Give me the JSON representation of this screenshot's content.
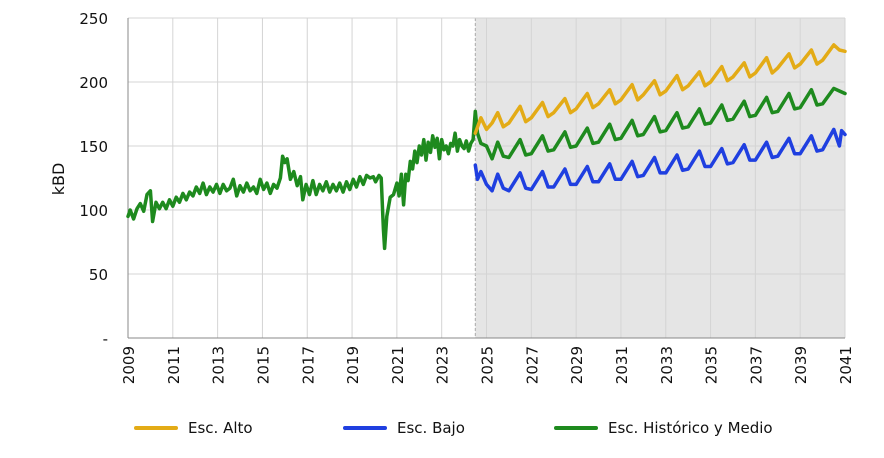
{
  "chart_data": {
    "type": "line",
    "ylabel": "kBD",
    "xlabel": "",
    "title": "",
    "ylim": [
      0,
      250
    ],
    "xlim": [
      2009,
      2041
    ],
    "y_ticks": [
      {
        "value": 0,
        "label": "-"
      },
      {
        "value": 50,
        "label": "50"
      },
      {
        "value": 100,
        "label": "100"
      },
      {
        "value": 150,
        "label": "150"
      },
      {
        "value": 200,
        "label": "200"
      },
      {
        "value": 250,
        "label": "250"
      }
    ],
    "x_ticks": [
      "2009",
      "2011",
      "2013",
      "2015",
      "2017",
      "2019",
      "2021",
      "2023",
      "2025",
      "2027",
      "2029",
      "2031",
      "2033",
      "2035",
      "2037",
      "2039",
      "2041"
    ],
    "grid": "vertical-and-horizontal",
    "legend_position": "bottom",
    "forecast_region": {
      "start": 2024.5,
      "end": 2041,
      "color": "#e5e5e5"
    },
    "series": [
      {
        "name": "Esc. Alto",
        "color": "#e3ab16",
        "points": [
          [
            2024.5,
            160
          ],
          [
            2024.75,
            172
          ],
          [
            2025.0,
            163
          ],
          [
            2025.25,
            168
          ],
          [
            2025.5,
            176
          ],
          [
            2025.75,
            165
          ],
          [
            2026.0,
            168
          ],
          [
            2026.5,
            181
          ],
          [
            2026.75,
            169
          ],
          [
            2027.0,
            172
          ],
          [
            2027.5,
            184
          ],
          [
            2027.75,
            173
          ],
          [
            2028.0,
            176
          ],
          [
            2028.5,
            187
          ],
          [
            2028.75,
            176
          ],
          [
            2029.0,
            179
          ],
          [
            2029.5,
            191
          ],
          [
            2029.75,
            180
          ],
          [
            2030.0,
            183
          ],
          [
            2030.5,
            194
          ],
          [
            2030.75,
            183
          ],
          [
            2031.0,
            186
          ],
          [
            2031.5,
            198
          ],
          [
            2031.75,
            186
          ],
          [
            2032.0,
            190
          ],
          [
            2032.5,
            201
          ],
          [
            2032.75,
            190
          ],
          [
            2033.0,
            193
          ],
          [
            2033.5,
            205
          ],
          [
            2033.75,
            194
          ],
          [
            2034.0,
            197
          ],
          [
            2034.5,
            208
          ],
          [
            2034.75,
            197
          ],
          [
            2035.0,
            200
          ],
          [
            2035.5,
            212
          ],
          [
            2035.75,
            201
          ],
          [
            2036.0,
            204
          ],
          [
            2036.5,
            215
          ],
          [
            2036.75,
            204
          ],
          [
            2037.0,
            207
          ],
          [
            2037.5,
            219
          ],
          [
            2037.75,
            207
          ],
          [
            2038.0,
            211
          ],
          [
            2038.5,
            222
          ],
          [
            2038.75,
            211
          ],
          [
            2039.0,
            214
          ],
          [
            2039.5,
            225
          ],
          [
            2039.75,
            214
          ],
          [
            2040.0,
            217
          ],
          [
            2040.5,
            229
          ],
          [
            2040.75,
            225
          ],
          [
            2041.0,
            224
          ]
        ]
      },
      {
        "name": "Esc. Bajo",
        "color": "#1f3fe0",
        "points": [
          [
            2024.5,
            135
          ],
          [
            2024.6,
            124
          ],
          [
            2024.75,
            130
          ],
          [
            2025.0,
            120
          ],
          [
            2025.25,
            115
          ],
          [
            2025.5,
            128
          ],
          [
            2025.75,
            117
          ],
          [
            2026.0,
            115
          ],
          [
            2026.5,
            129
          ],
          [
            2026.75,
            117
          ],
          [
            2027.0,
            116
          ],
          [
            2027.5,
            130
          ],
          [
            2027.75,
            118
          ],
          [
            2028.0,
            118
          ],
          [
            2028.5,
            132
          ],
          [
            2028.75,
            120
          ],
          [
            2029.0,
            120
          ],
          [
            2029.5,
            134
          ],
          [
            2029.75,
            122
          ],
          [
            2030.0,
            122
          ],
          [
            2030.5,
            136
          ],
          [
            2030.75,
            124
          ],
          [
            2031.0,
            124
          ],
          [
            2031.5,
            138
          ],
          [
            2031.75,
            126
          ],
          [
            2032.0,
            127
          ],
          [
            2032.5,
            141
          ],
          [
            2032.75,
            129
          ],
          [
            2033.0,
            129
          ],
          [
            2033.5,
            143
          ],
          [
            2033.75,
            131
          ],
          [
            2034.0,
            132
          ],
          [
            2034.5,
            146
          ],
          [
            2034.75,
            134
          ],
          [
            2035.0,
            134
          ],
          [
            2035.5,
            148
          ],
          [
            2035.75,
            136
          ],
          [
            2036.0,
            137
          ],
          [
            2036.5,
            151
          ],
          [
            2036.75,
            139
          ],
          [
            2037.0,
            139
          ],
          [
            2037.5,
            153
          ],
          [
            2037.75,
            141
          ],
          [
            2038.0,
            142
          ],
          [
            2038.5,
            156
          ],
          [
            2038.75,
            144
          ],
          [
            2039.0,
            144
          ],
          [
            2039.5,
            158
          ],
          [
            2039.75,
            146
          ],
          [
            2040.0,
            147
          ],
          [
            2040.5,
            163
          ],
          [
            2040.75,
            150
          ],
          [
            2040.85,
            162
          ],
          [
            2041.0,
            159
          ]
        ]
      },
      {
        "name": "Esc. Histórico y Medio",
        "color": "#1e8a1e",
        "points": [
          [
            2009.0,
            95
          ],
          [
            2009.1,
            100
          ],
          [
            2009.25,
            93
          ],
          [
            2009.4,
            101
          ],
          [
            2009.55,
            105
          ],
          [
            2009.7,
            99
          ],
          [
            2009.85,
            112
          ],
          [
            2010.0,
            115
          ],
          [
            2010.1,
            91
          ],
          [
            2010.25,
            106
          ],
          [
            2010.4,
            101
          ],
          [
            2010.55,
            106
          ],
          [
            2010.7,
            101
          ],
          [
            2010.85,
            108
          ],
          [
            2011.0,
            103
          ],
          [
            2011.15,
            110
          ],
          [
            2011.3,
            106
          ],
          [
            2011.45,
            113
          ],
          [
            2011.6,
            108
          ],
          [
            2011.75,
            114
          ],
          [
            2011.9,
            111
          ],
          [
            2012.05,
            118
          ],
          [
            2012.2,
            113
          ],
          [
            2012.35,
            121
          ],
          [
            2012.5,
            112
          ],
          [
            2012.65,
            118
          ],
          [
            2012.8,
            114
          ],
          [
            2012.95,
            120
          ],
          [
            2013.1,
            113
          ],
          [
            2013.25,
            120
          ],
          [
            2013.4,
            115
          ],
          [
            2013.55,
            117
          ],
          [
            2013.7,
            124
          ],
          [
            2013.85,
            111
          ],
          [
            2014.0,
            119
          ],
          [
            2014.15,
            114
          ],
          [
            2014.3,
            121
          ],
          [
            2014.45,
            115
          ],
          [
            2014.6,
            118
          ],
          [
            2014.75,
            113
          ],
          [
            2014.9,
            124
          ],
          [
            2015.05,
            116
          ],
          [
            2015.2,
            121
          ],
          [
            2015.35,
            113
          ],
          [
            2015.5,
            120
          ],
          [
            2015.65,
            117
          ],
          [
            2015.8,
            125
          ],
          [
            2015.9,
            142
          ],
          [
            2016.0,
            137
          ],
          [
            2016.1,
            140
          ],
          [
            2016.25,
            124
          ],
          [
            2016.4,
            130
          ],
          [
            2016.55,
            119
          ],
          [
            2016.7,
            126
          ],
          [
            2016.8,
            108
          ],
          [
            2016.95,
            120
          ],
          [
            2017.1,
            112
          ],
          [
            2017.25,
            123
          ],
          [
            2017.4,
            112
          ],
          [
            2017.55,
            120
          ],
          [
            2017.7,
            115
          ],
          [
            2017.85,
            122
          ],
          [
            2018.0,
            114
          ],
          [
            2018.15,
            120
          ],
          [
            2018.3,
            115
          ],
          [
            2018.45,
            121
          ],
          [
            2018.6,
            114
          ],
          [
            2018.75,
            122
          ],
          [
            2018.9,
            116
          ],
          [
            2019.05,
            124
          ],
          [
            2019.2,
            118
          ],
          [
            2019.35,
            126
          ],
          [
            2019.5,
            120
          ],
          [
            2019.65,
            127
          ],
          [
            2019.8,
            125
          ],
          [
            2019.95,
            126
          ],
          [
            2020.05,
            122
          ],
          [
            2020.2,
            127
          ],
          [
            2020.3,
            125
          ],
          [
            2020.4,
            85
          ],
          [
            2020.45,
            70
          ],
          [
            2020.55,
            95
          ],
          [
            2020.7,
            110
          ],
          [
            2020.85,
            112
          ],
          [
            2021.0,
            121
          ],
          [
            2021.1,
            111
          ],
          [
            2021.2,
            128
          ],
          [
            2021.3,
            104
          ],
          [
            2021.4,
            128
          ],
          [
            2021.5,
            123
          ],
          [
            2021.6,
            138
          ],
          [
            2021.7,
            132
          ],
          [
            2021.8,
            146
          ],
          [
            2021.9,
            137
          ],
          [
            2022.0,
            150
          ],
          [
            2022.1,
            143
          ],
          [
            2022.2,
            155
          ],
          [
            2022.3,
            139
          ],
          [
            2022.4,
            153
          ],
          [
            2022.5,
            145
          ],
          [
            2022.6,
            158
          ],
          [
            2022.7,
            149
          ],
          [
            2022.8,
            156
          ],
          [
            2022.9,
            140
          ],
          [
            2023.0,
            155
          ],
          [
            2023.1,
            147
          ],
          [
            2023.2,
            150
          ],
          [
            2023.3,
            144
          ],
          [
            2023.4,
            152
          ],
          [
            2023.5,
            150
          ],
          [
            2023.6,
            160
          ],
          [
            2023.7,
            146
          ],
          [
            2023.8,
            155
          ],
          [
            2023.9,
            150
          ],
          [
            2024.0,
            148
          ],
          [
            2024.1,
            154
          ],
          [
            2024.2,
            146
          ],
          [
            2024.3,
            152
          ],
          [
            2024.4,
            155
          ],
          [
            2024.5,
            177
          ],
          [
            2024.6,
            160
          ],
          [
            2024.75,
            152
          ],
          [
            2025.0,
            150
          ],
          [
            2025.25,
            140
          ],
          [
            2025.5,
            153
          ],
          [
            2025.75,
            142
          ],
          [
            2026.0,
            141
          ],
          [
            2026.5,
            155
          ],
          [
            2026.75,
            143
          ],
          [
            2027.0,
            144
          ],
          [
            2027.5,
            158
          ],
          [
            2027.75,
            146
          ],
          [
            2028.0,
            147
          ],
          [
            2028.5,
            161
          ],
          [
            2028.75,
            149
          ],
          [
            2029.0,
            150
          ],
          [
            2029.5,
            164
          ],
          [
            2029.75,
            152
          ],
          [
            2030.0,
            153
          ],
          [
            2030.5,
            167
          ],
          [
            2030.75,
            155
          ],
          [
            2031.0,
            156
          ],
          [
            2031.5,
            170
          ],
          [
            2031.75,
            158
          ],
          [
            2032.0,
            159
          ],
          [
            2032.5,
            173
          ],
          [
            2032.75,
            161
          ],
          [
            2033.0,
            162
          ],
          [
            2033.5,
            176
          ],
          [
            2033.75,
            164
          ],
          [
            2034.0,
            165
          ],
          [
            2034.5,
            179
          ],
          [
            2034.75,
            167
          ],
          [
            2035.0,
            168
          ],
          [
            2035.5,
            182
          ],
          [
            2035.75,
            170
          ],
          [
            2036.0,
            171
          ],
          [
            2036.5,
            185
          ],
          [
            2036.75,
            173
          ],
          [
            2037.0,
            174
          ],
          [
            2037.5,
            188
          ],
          [
            2037.75,
            176
          ],
          [
            2038.0,
            177
          ],
          [
            2038.5,
            191
          ],
          [
            2038.75,
            179
          ],
          [
            2039.0,
            180
          ],
          [
            2039.5,
            194
          ],
          [
            2039.75,
            182
          ],
          [
            2040.0,
            183
          ],
          [
            2040.5,
            195
          ],
          [
            2040.75,
            193
          ],
          [
            2041.0,
            191
          ]
        ]
      }
    ]
  }
}
